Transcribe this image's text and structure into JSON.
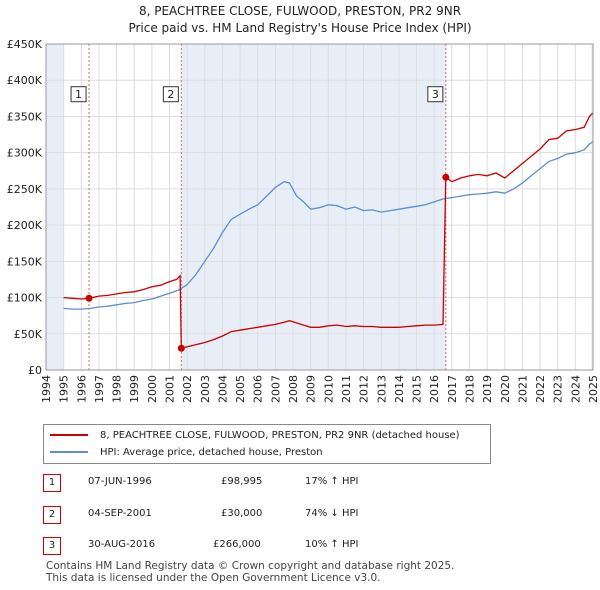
{
  "title_line1": "8, PEACHTREE CLOSE, FULWOOD, PRESTON, PR2 9NR",
  "title_line2": "Price paid vs. HM Land Registry's House Price Index (HPI)",
  "chart_data": {
    "type": "line",
    "xlim": [
      1994,
      2025
    ],
    "ylim": [
      0,
      450000
    ],
    "x_ticks": [
      1994,
      1995,
      1996,
      1997,
      1998,
      1999,
      2000,
      2001,
      2002,
      2003,
      2004,
      2005,
      2006,
      2007,
      2008,
      2009,
      2010,
      2011,
      2012,
      2013,
      2014,
      2015,
      2016,
      2017,
      2018,
      2019,
      2020,
      2021,
      2022,
      2023,
      2024,
      2025
    ],
    "y_ticks": [
      {
        "value": 0,
        "label": "£0"
      },
      {
        "value": 50000,
        "label": "£50K"
      },
      {
        "value": 100000,
        "label": "£100K"
      },
      {
        "value": 150000,
        "label": "£150K"
      },
      {
        "value": 200000,
        "label": "£200K"
      },
      {
        "value": 250000,
        "label": "£250K"
      },
      {
        "value": 300000,
        "label": "£300K"
      },
      {
        "value": 350000,
        "label": "£350K"
      },
      {
        "value": 400000,
        "label": "£400K"
      },
      {
        "value": 450000,
        "label": "£450K"
      }
    ],
    "shaded_ranges": [
      [
        1994,
        1995
      ],
      [
        2001.67,
        2016.66
      ],
      [
        2024.9,
        2025
      ]
    ],
    "series": [
      {
        "name": "8, PEACHTREE CLOSE, FULWOOD, PRESTON, PR2 9NR (detached house)",
        "color": "#cc0000",
        "points": [
          [
            1995.0,
            100000
          ],
          [
            1995.5,
            99000
          ],
          [
            1996.0,
            98000
          ],
          [
            1996.44,
            98995
          ],
          [
            1997.0,
            102000
          ],
          [
            1997.5,
            103000
          ],
          [
            1998.0,
            105000
          ],
          [
            1998.5,
            107000
          ],
          [
            1999.0,
            108000
          ],
          [
            1999.5,
            111000
          ],
          [
            2000.0,
            115000
          ],
          [
            2000.5,
            117000
          ],
          [
            2001.0,
            122000
          ],
          [
            2001.4,
            125000
          ],
          [
            2001.6,
            130000
          ],
          [
            2001.67,
            30000
          ],
          [
            2002.0,
            32000
          ],
          [
            2002.5,
            35000
          ],
          [
            2003.0,
            38000
          ],
          [
            2003.5,
            42000
          ],
          [
            2004.0,
            47000
          ],
          [
            2004.5,
            53000
          ],
          [
            2005.0,
            55000
          ],
          [
            2005.5,
            57000
          ],
          [
            2006.0,
            59000
          ],
          [
            2006.5,
            61000
          ],
          [
            2007.0,
            63000
          ],
          [
            2007.5,
            66000
          ],
          [
            2007.8,
            68000
          ],
          [
            2008.2,
            65000
          ],
          [
            2008.6,
            62000
          ],
          [
            2009.0,
            59000
          ],
          [
            2009.5,
            59000
          ],
          [
            2010.0,
            61000
          ],
          [
            2010.5,
            62000
          ],
          [
            2011.0,
            60000
          ],
          [
            2011.5,
            61000
          ],
          [
            2012.0,
            60000
          ],
          [
            2012.5,
            60000
          ],
          [
            2013.0,
            59000
          ],
          [
            2013.5,
            59000
          ],
          [
            2014.0,
            59000
          ],
          [
            2014.5,
            60000
          ],
          [
            2015.0,
            61000
          ],
          [
            2015.5,
            62000
          ],
          [
            2016.0,
            62000
          ],
          [
            2016.5,
            63000
          ],
          [
            2016.66,
            266000
          ],
          [
            2017.0,
            260000
          ],
          [
            2017.5,
            265000
          ],
          [
            2018.0,
            268000
          ],
          [
            2018.5,
            270000
          ],
          [
            2019.0,
            268000
          ],
          [
            2019.5,
            272000
          ],
          [
            2020.0,
            265000
          ],
          [
            2020.5,
            275000
          ],
          [
            2021.0,
            285000
          ],
          [
            2021.5,
            295000
          ],
          [
            2022.0,
            305000
          ],
          [
            2022.5,
            318000
          ],
          [
            2023.0,
            320000
          ],
          [
            2023.5,
            330000
          ],
          [
            2024.0,
            332000
          ],
          [
            2024.5,
            335000
          ],
          [
            2024.8,
            350000
          ],
          [
            2025.0,
            355000
          ]
        ]
      },
      {
        "name": "HPI: Average price, detached house, Preston",
        "color": "#5b8fd0",
        "points": [
          [
            1995.0,
            85000
          ],
          [
            1995.5,
            84000
          ],
          [
            1996.0,
            84000
          ],
          [
            1996.5,
            85000
          ],
          [
            1997.0,
            87000
          ],
          [
            1997.5,
            88000
          ],
          [
            1998.0,
            90000
          ],
          [
            1998.5,
            92000
          ],
          [
            1999.0,
            93000
          ],
          [
            1999.5,
            96000
          ],
          [
            2000.0,
            98000
          ],
          [
            2000.5,
            102000
          ],
          [
            2001.0,
            106000
          ],
          [
            2001.5,
            110000
          ],
          [
            2002.0,
            118000
          ],
          [
            2002.5,
            132000
          ],
          [
            2003.0,
            150000
          ],
          [
            2003.5,
            168000
          ],
          [
            2004.0,
            190000
          ],
          [
            2004.5,
            208000
          ],
          [
            2005.0,
            215000
          ],
          [
            2005.5,
            222000
          ],
          [
            2006.0,
            228000
          ],
          [
            2006.5,
            240000
          ],
          [
            2007.0,
            252000
          ],
          [
            2007.5,
            260000
          ],
          [
            2007.8,
            258000
          ],
          [
            2008.2,
            240000
          ],
          [
            2008.6,
            232000
          ],
          [
            2009.0,
            222000
          ],
          [
            2009.5,
            224000
          ],
          [
            2010.0,
            228000
          ],
          [
            2010.5,
            227000
          ],
          [
            2011.0,
            222000
          ],
          [
            2011.5,
            225000
          ],
          [
            2012.0,
            220000
          ],
          [
            2012.5,
            221000
          ],
          [
            2013.0,
            218000
          ],
          [
            2013.5,
            220000
          ],
          [
            2014.0,
            222000
          ],
          [
            2014.5,
            224000
          ],
          [
            2015.0,
            226000
          ],
          [
            2015.5,
            228000
          ],
          [
            2016.0,
            232000
          ],
          [
            2016.5,
            236000
          ],
          [
            2017.0,
            238000
          ],
          [
            2017.5,
            240000
          ],
          [
            2018.0,
            242000
          ],
          [
            2018.5,
            243000
          ],
          [
            2019.0,
            244000
          ],
          [
            2019.5,
            246000
          ],
          [
            2020.0,
            244000
          ],
          [
            2020.5,
            250000
          ],
          [
            2021.0,
            258000
          ],
          [
            2021.5,
            268000
          ],
          [
            2022.0,
            278000
          ],
          [
            2022.5,
            288000
          ],
          [
            2023.0,
            292000
          ],
          [
            2023.5,
            298000
          ],
          [
            2024.0,
            300000
          ],
          [
            2024.5,
            304000
          ],
          [
            2024.8,
            312000
          ],
          [
            2025.0,
            315000
          ]
        ]
      }
    ],
    "sales": [
      {
        "num": "1",
        "x": 1996.44,
        "y": 98995
      },
      {
        "num": "2",
        "x": 2001.67,
        "y": 30000
      },
      {
        "num": "3",
        "x": 2016.66,
        "y": 266000
      }
    ],
    "marker_box_value": 380000
  },
  "legend": {
    "red_label": "8, PEACHTREE CLOSE, FULWOOD, PRESTON, PR2 9NR (detached house)",
    "blue_label": "HPI: Average price, detached house, Preston"
  },
  "transactions": [
    {
      "num": "1",
      "date": "07-JUN-1996",
      "price": "£98,995",
      "hpi": "17% ↑ HPI"
    },
    {
      "num": "2",
      "date": "04-SEP-2001",
      "price": "£30,000",
      "hpi": "74% ↓ HPI"
    },
    {
      "num": "3",
      "date": "30-AUG-2016",
      "price": "£266,000",
      "hpi": "10% ↑ HPI"
    }
  ],
  "footer_line1": "Contains HM Land Registry data © Crown copyright and database right 2025.",
  "footer_line2": "This data is licensed under the Open Government Licence v3.0."
}
